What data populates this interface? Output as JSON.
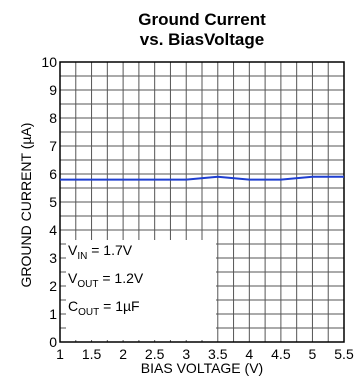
{
  "chart_data": {
    "type": "line",
    "title": "Ground Current",
    "subtitle": "vs. BiasVoltage",
    "xlabel": "BIAS VOLTAGE (V)",
    "ylabel": "GROUND CURRENT (µA)",
    "xlim": [
      1,
      5.5
    ],
    "ylim": [
      0,
      10
    ],
    "xticks": [
      "1",
      "1.5",
      "2",
      "2.5",
      "3",
      "3.5",
      "4",
      "4.5",
      "5",
      "5.5"
    ],
    "yticks": [
      "0",
      "1",
      "2",
      "3",
      "4",
      "5",
      "6",
      "7",
      "8",
      "9",
      "10"
    ],
    "grid": true,
    "series": [
      {
        "color": "#1f3fd0",
        "x": [
          1,
          1.5,
          2,
          2.5,
          3,
          3.5,
          4,
          4.5,
          5,
          5.5
        ],
        "y": [
          5.8,
          5.8,
          5.8,
          5.8,
          5.8,
          5.9,
          5.8,
          5.8,
          5.9,
          5.9
        ]
      }
    ],
    "annotation": {
      "vin": {
        "main": "V",
        "sub": "IN",
        "value": " = 1.7V"
      },
      "vout": {
        "main": "V",
        "sub": "OUT",
        "value": " = 1.2V"
      },
      "cout": {
        "main": "C",
        "sub": "OUT",
        "value": " = 1µF"
      }
    }
  }
}
